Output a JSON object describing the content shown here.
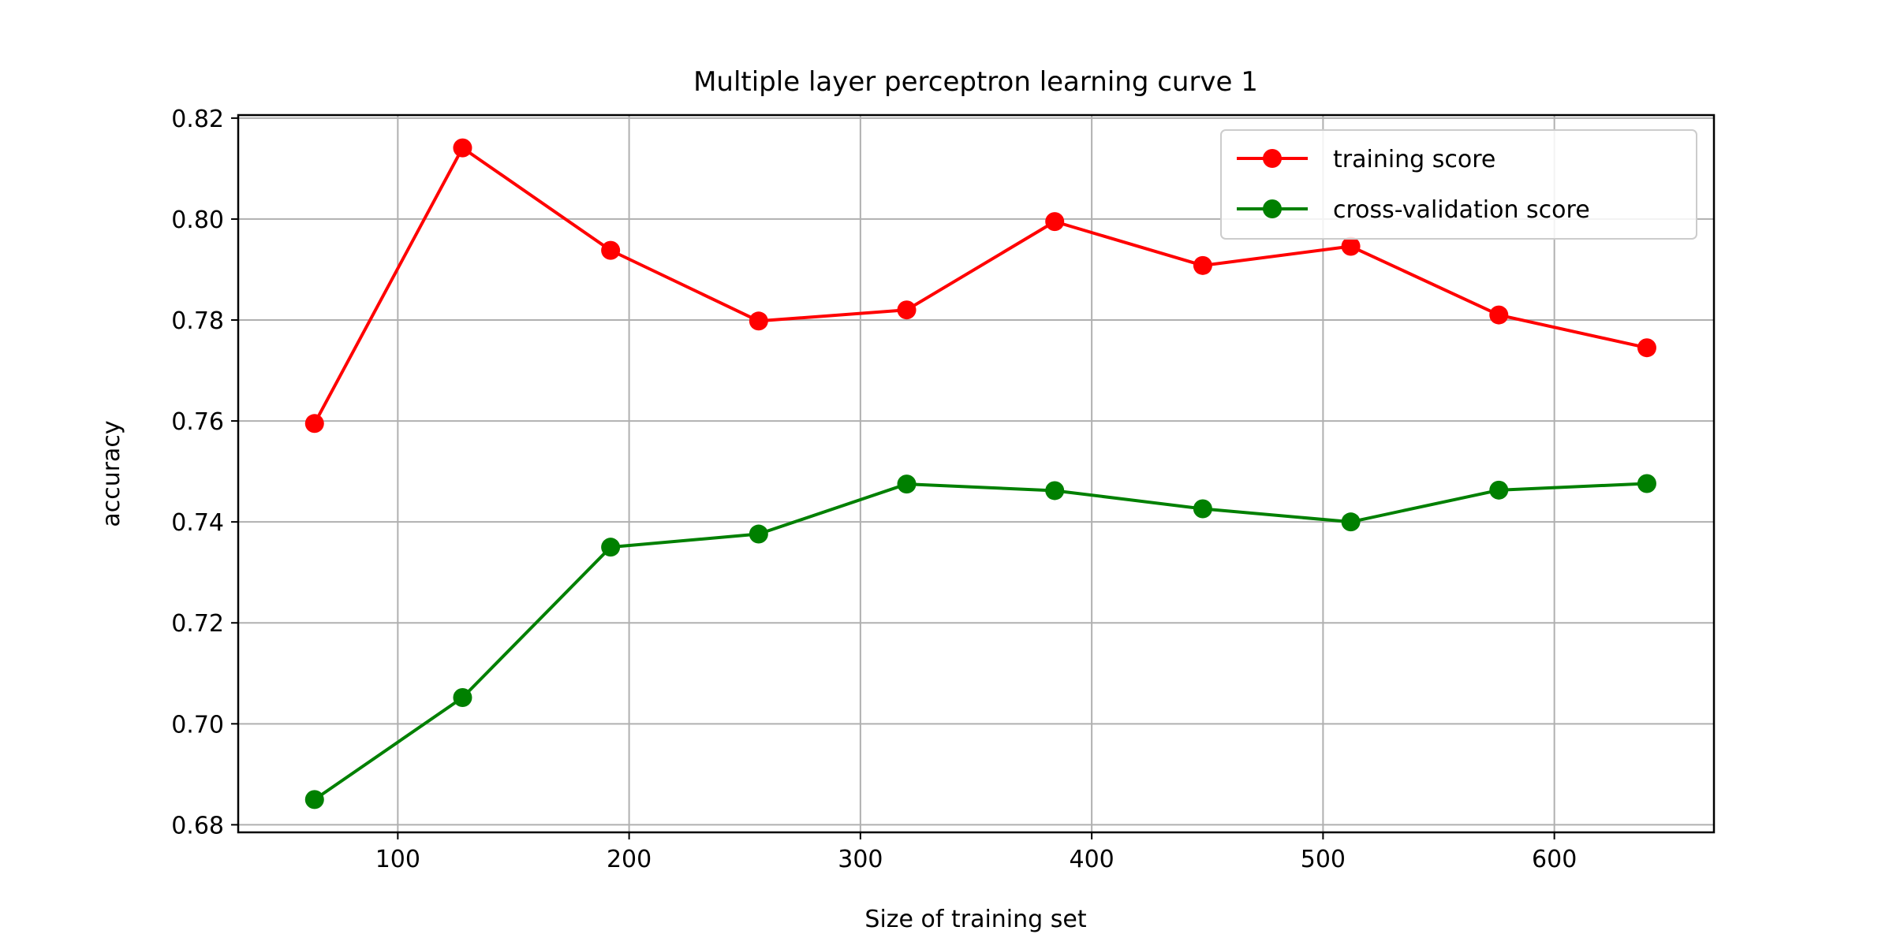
{
  "chart_data": {
    "type": "line",
    "title": "Multiple layer perceptron learning curve 1",
    "xlabel": "Size of training set",
    "ylabel": "accuracy",
    "xlim": [
      31,
      669
    ],
    "ylim": [
      0.6785,
      0.8206
    ],
    "xticks": [
      100,
      200,
      300,
      400,
      500,
      600
    ],
    "xtick_labels": [
      "100",
      "200",
      "300",
      "400",
      "500",
      "600"
    ],
    "yticks": [
      0.68,
      0.7,
      0.72,
      0.74,
      0.76,
      0.78,
      0.8,
      0.82
    ],
    "ytick_labels": [
      "0.68",
      "0.70",
      "0.72",
      "0.74",
      "0.76",
      "0.78",
      "0.80",
      "0.82"
    ],
    "grid": true,
    "legend_position": "top-right",
    "x": [
      64,
      128,
      192,
      256,
      320,
      384,
      448,
      512,
      576,
      640
    ],
    "series": [
      {
        "name": "training score",
        "color": "#ff0000",
        "marker": "circle",
        "values": [
          0.7595,
          0.8141,
          0.7938,
          0.7798,
          0.782,
          0.7995,
          0.7908,
          0.7946,
          0.781,
          0.7745
        ]
      },
      {
        "name": "cross-validation score",
        "color": "#008000",
        "marker": "circle",
        "values": [
          0.685,
          0.7052,
          0.735,
          0.7376,
          0.7475,
          0.7462,
          0.7426,
          0.74,
          0.7463,
          0.7476
        ]
      }
    ]
  }
}
